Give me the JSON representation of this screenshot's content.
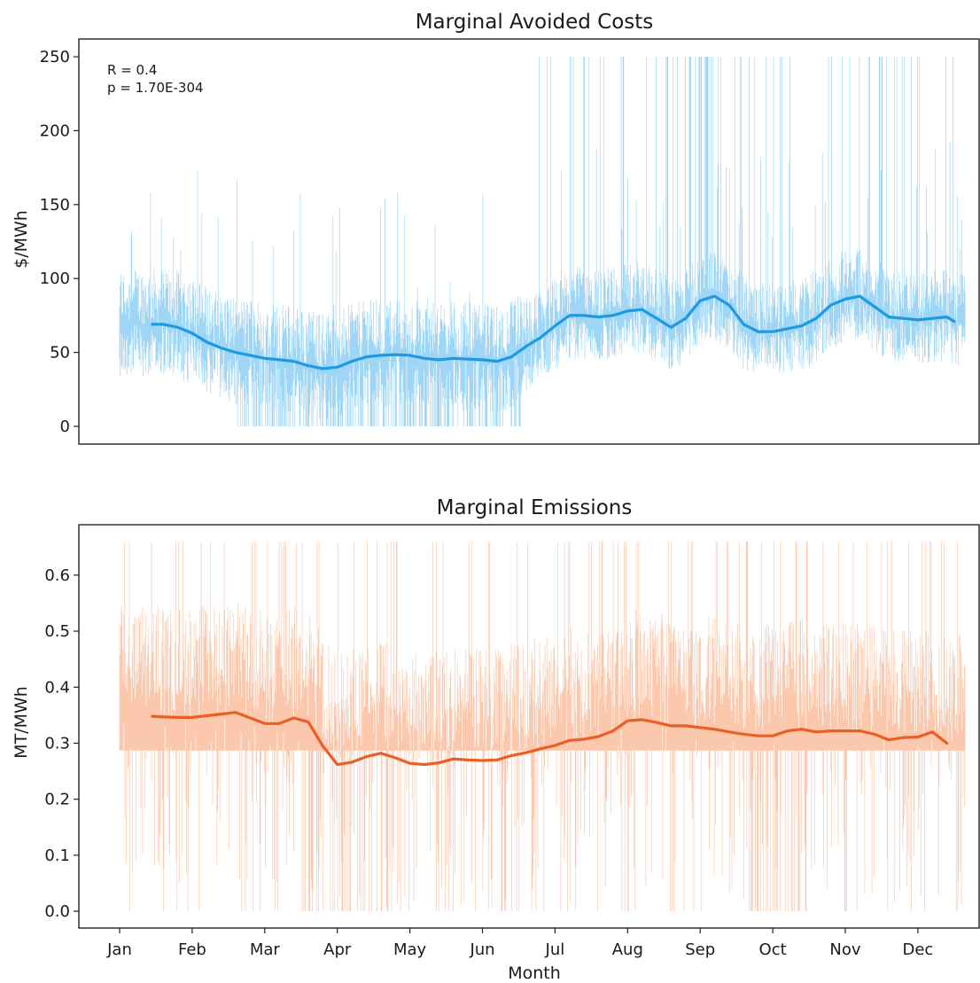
{
  "chart_data": [
    {
      "type": "line",
      "title": "Marginal Avoided Costs",
      "xlabel": "",
      "ylabel": "$/MWh",
      "ylim": [
        -12,
        262
      ],
      "yticks": [
        0,
        50,
        100,
        150,
        200,
        250
      ],
      "xlim": [
        0,
        12
      ],
      "grid": false,
      "annotations": [
        "R = 0.4",
        "p = 1.70E-304"
      ],
      "colors": {
        "raw": "#9fd6f5",
        "smooth": "#1f9ae0"
      },
      "series": [
        {
          "x": [
            0.45,
            0.6,
            0.8,
            1.0,
            1.2,
            1.4,
            1.6,
            1.8,
            2.0,
            2.2,
            2.4,
            2.6,
            2.8,
            3.0,
            3.2,
            3.4,
            3.6,
            3.8,
            4.0,
            4.2,
            4.4,
            4.6,
            4.8,
            5.0,
            5.2,
            5.4,
            5.6,
            5.8,
            6.0,
            6.2,
            6.4,
            6.6,
            6.8,
            7.0,
            7.2,
            7.4,
            7.6,
            7.8,
            8.0,
            8.2,
            8.4,
            8.6,
            8.8,
            9.0,
            9.2,
            9.4,
            9.6,
            9.8,
            10.0,
            10.2,
            10.4,
            10.6,
            10.8,
            11.0,
            11.2,
            11.4,
            11.5
          ],
          "values": [
            69,
            69,
            67,
            63,
            57,
            53,
            50,
            48,
            46,
            45,
            44,
            41,
            39,
            40,
            44,
            47,
            48,
            48.5,
            48,
            46,
            45,
            46,
            45.5,
            45,
            44,
            47,
            54,
            60,
            68,
            75,
            75,
            74,
            75,
            78,
            79,
            73,
            67,
            73,
            85,
            88,
            82,
            69,
            64,
            64,
            66,
            68,
            73,
            82,
            86,
            88,
            81,
            74,
            73,
            72,
            73,
            74,
            71
          ]
        }
      ]
    },
    {
      "type": "line",
      "title": "Marginal Emissions",
      "xlabel": "Month",
      "ylabel": "MT/MWh",
      "ylim": [
        -0.03,
        0.69
      ],
      "yticks": [
        0.0,
        0.1,
        0.2,
        0.3,
        0.4,
        0.5,
        0.6
      ],
      "xlim": [
        0,
        12
      ],
      "categories": [
        "Jan",
        "Feb",
        "Mar",
        "Apr",
        "May",
        "Jun",
        "Jul",
        "Aug",
        "Sep",
        "Oct",
        "Nov",
        "Dec"
      ],
      "grid": false,
      "colors": {
        "raw": "#fbc8ae",
        "smooth": "#ea5f24"
      },
      "series": [
        {
          "x": [
            0.45,
            0.6,
            0.8,
            1.0,
            1.2,
            1.4,
            1.6,
            1.8,
            2.0,
            2.2,
            2.4,
            2.6,
            2.8,
            3.0,
            3.2,
            3.4,
            3.6,
            3.8,
            4.0,
            4.2,
            4.4,
            4.6,
            4.8,
            5.0,
            5.2,
            5.4,
            5.6,
            5.8,
            6.0,
            6.2,
            6.4,
            6.6,
            6.8,
            7.0,
            7.2,
            7.4,
            7.6,
            7.8,
            8.0,
            8.2,
            8.4,
            8.6,
            8.8,
            9.0,
            9.2,
            9.4,
            9.6,
            9.8,
            10.0,
            10.2,
            10.4,
            10.6,
            10.8,
            11.0,
            11.2,
            11.4
          ],
          "values": [
            0.348,
            0.347,
            0.346,
            0.346,
            0.349,
            0.352,
            0.355,
            0.345,
            0.335,
            0.335,
            0.345,
            0.338,
            0.295,
            0.262,
            0.266,
            0.276,
            0.282,
            0.274,
            0.264,
            0.262,
            0.265,
            0.272,
            0.27,
            0.269,
            0.27,
            0.278,
            0.283,
            0.29,
            0.296,
            0.305,
            0.307,
            0.312,
            0.322,
            0.34,
            0.342,
            0.337,
            0.331,
            0.331,
            0.328,
            0.325,
            0.32,
            0.316,
            0.313,
            0.313,
            0.322,
            0.325,
            0.32,
            0.322,
            0.322,
            0.322,
            0.316,
            0.306,
            0.31,
            0.311,
            0.32,
            0.3
          ]
        }
      ]
    }
  ]
}
